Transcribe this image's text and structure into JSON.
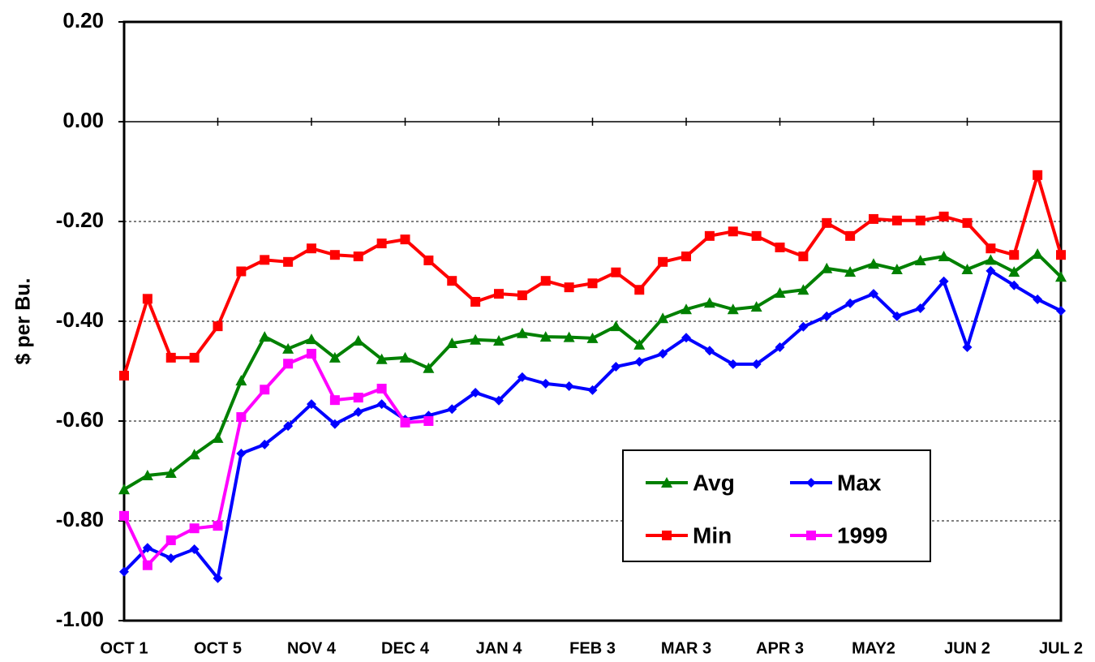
{
  "chart_data": {
    "type": "line",
    "y_label": "$ per Bu.",
    "categories": [
      "OCT 1",
      null,
      null,
      null,
      "OCT 5",
      null,
      null,
      null,
      "NOV 4",
      null,
      null,
      null,
      "DEC 4",
      null,
      null,
      null,
      "JAN 4",
      null,
      null,
      null,
      "FEB 3",
      null,
      null,
      null,
      "MAR 3",
      null,
      null,
      null,
      "APR 3",
      null,
      null,
      null,
      "MAY2",
      null,
      null,
      null,
      "JUN 2",
      null,
      null,
      null,
      "JUL 2"
    ],
    "series": [
      {
        "name": "Avg",
        "color": "#008000",
        "marker": "triangle",
        "values": [
          -0.737,
          -0.709,
          -0.704,
          -0.667,
          -0.634,
          -0.519,
          -0.431,
          -0.455,
          -0.436,
          -0.473,
          -0.439,
          -0.476,
          -0.473,
          -0.494,
          -0.444,
          -0.437,
          -0.439,
          -0.424,
          -0.431,
          -0.432,
          -0.434,
          -0.41,
          -0.447,
          -0.394,
          -0.376,
          -0.363,
          -0.376,
          -0.371,
          -0.343,
          -0.337,
          -0.294,
          -0.301,
          -0.285,
          -0.296,
          -0.278,
          -0.27,
          -0.296,
          -0.277,
          -0.301,
          -0.265,
          -0.311
        ]
      },
      {
        "name": "Max",
        "color": "#0000ff",
        "marker": "diamond",
        "values": [
          -0.902,
          -0.854,
          -0.875,
          -0.857,
          -0.915,
          -0.665,
          -0.647,
          -0.61,
          -0.566,
          -0.606,
          -0.582,
          -0.566,
          -0.597,
          -0.589,
          -0.576,
          -0.543,
          -0.559,
          -0.512,
          -0.525,
          -0.53,
          -0.538,
          -0.491,
          -0.481,
          -0.465,
          -0.433,
          -0.459,
          -0.486,
          -0.486,
          -0.452,
          -0.411,
          -0.39,
          -0.364,
          -0.345,
          -0.39,
          -0.374,
          -0.32,
          -0.452,
          -0.299,
          -0.328,
          -0.356,
          -0.379
        ]
      },
      {
        "name": "Min",
        "color": "#ff0000",
        "marker": "square",
        "values": [
          -0.509,
          -0.355,
          -0.473,
          -0.473,
          -0.41,
          -0.3,
          -0.277,
          -0.281,
          -0.254,
          -0.267,
          -0.27,
          -0.244,
          -0.236,
          -0.278,
          -0.319,
          -0.361,
          -0.345,
          -0.348,
          -0.319,
          -0.332,
          -0.324,
          -0.302,
          -0.337,
          -0.281,
          -0.27,
          -0.229,
          -0.22,
          -0.229,
          -0.252,
          -0.27,
          -0.203,
          -0.229,
          -0.195,
          -0.198,
          -0.198,
          -0.19,
          -0.203,
          -0.254,
          -0.267,
          -0.107,
          -0.267
        ]
      },
      {
        "name": "1999",
        "color": "#ff00ff",
        "marker": "square",
        "values": [
          -0.79,
          -0.889,
          -0.839,
          -0.815,
          -0.81,
          -0.592,
          -0.537,
          -0.485,
          -0.465,
          -0.558,
          -0.553,
          -0.535,
          -0.603,
          -0.6,
          null,
          null,
          null,
          null,
          null,
          null,
          null,
          null,
          null,
          null,
          null,
          null,
          null,
          null,
          null,
          null,
          null,
          null,
          null,
          null,
          null,
          null,
          null,
          null,
          null,
          null,
          null
        ]
      }
    ],
    "ylim": [
      -1.0,
      0.2
    ],
    "yticks": [
      {
        "value": 0.2,
        "label": "0.20"
      },
      {
        "value": 0.0,
        "label": "0.00"
      },
      {
        "value": -0.2,
        "label": "-0.20"
      },
      {
        "value": -0.4,
        "label": "-0.40"
      },
      {
        "value": -0.6,
        "label": "-0.60"
      },
      {
        "value": -0.8,
        "label": "-0.80"
      },
      {
        "value": -1.0,
        "label": "-1.00"
      }
    ],
    "grid": true,
    "legend": "lower right"
  }
}
